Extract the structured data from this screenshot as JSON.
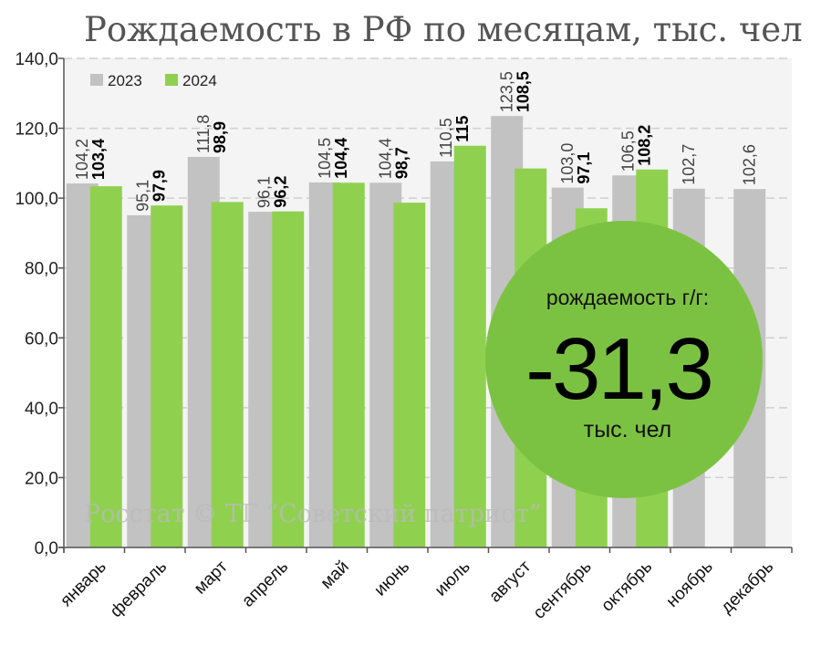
{
  "title": "Рождаемость в РФ по месяцам, тыс. чел",
  "watermark": "Росстат © ТГ “Советский патриот”",
  "colors": {
    "series_2023": "#c2c2c2",
    "series_2024": "#8fd14f",
    "badge": "#7cc242",
    "grid": "#cfcfcf",
    "plot_bg": "#f4f4f4"
  },
  "chart_data": {
    "type": "bar",
    "title": "Рождаемость в РФ по месяцам, тыс. чел",
    "categories": [
      "январь",
      "февраль",
      "март",
      "апрель",
      "май",
      "июнь",
      "июль",
      "август",
      "сентябрь",
      "октябрь",
      "ноябрь",
      "декабрь"
    ],
    "series": [
      {
        "name": "2023",
        "values": [
          104.2,
          95.1,
          111.8,
          96.1,
          104.5,
          104.4,
          110.5,
          123.5,
          103.0,
          106.5,
          102.7,
          102.6
        ],
        "labels": [
          "104,2",
          "95,1",
          "111,8",
          "96,1",
          "104,5",
          "104,4",
          "110,5",
          "123,5",
          "103,0",
          "106,5",
          "102,7",
          "102,6"
        ]
      },
      {
        "name": "2024",
        "values": [
          103.4,
          97.9,
          98.9,
          96.2,
          104.4,
          98.7,
          115,
          108.5,
          97.1,
          108.2,
          null,
          null
        ],
        "labels": [
          "103,4",
          "97,9",
          "98,9",
          "96,2",
          "104,4",
          "98,7",
          "115",
          "108,5",
          "97,1",
          "108,2",
          null,
          null
        ]
      }
    ],
    "ylim": [
      0,
      140
    ],
    "yticks": [
      0,
      20,
      40,
      60,
      80,
      100,
      120,
      140
    ],
    "ytick_labels": [
      "0,0",
      "20,0",
      "40,0",
      "60,0",
      "80,0",
      "100,0",
      "120,0",
      "140,0"
    ],
    "grid": true,
    "legend": "top-left"
  },
  "badge": {
    "caption": "рождаемость г/г:",
    "value": "-31,3",
    "unit": "тыс. чел"
  }
}
